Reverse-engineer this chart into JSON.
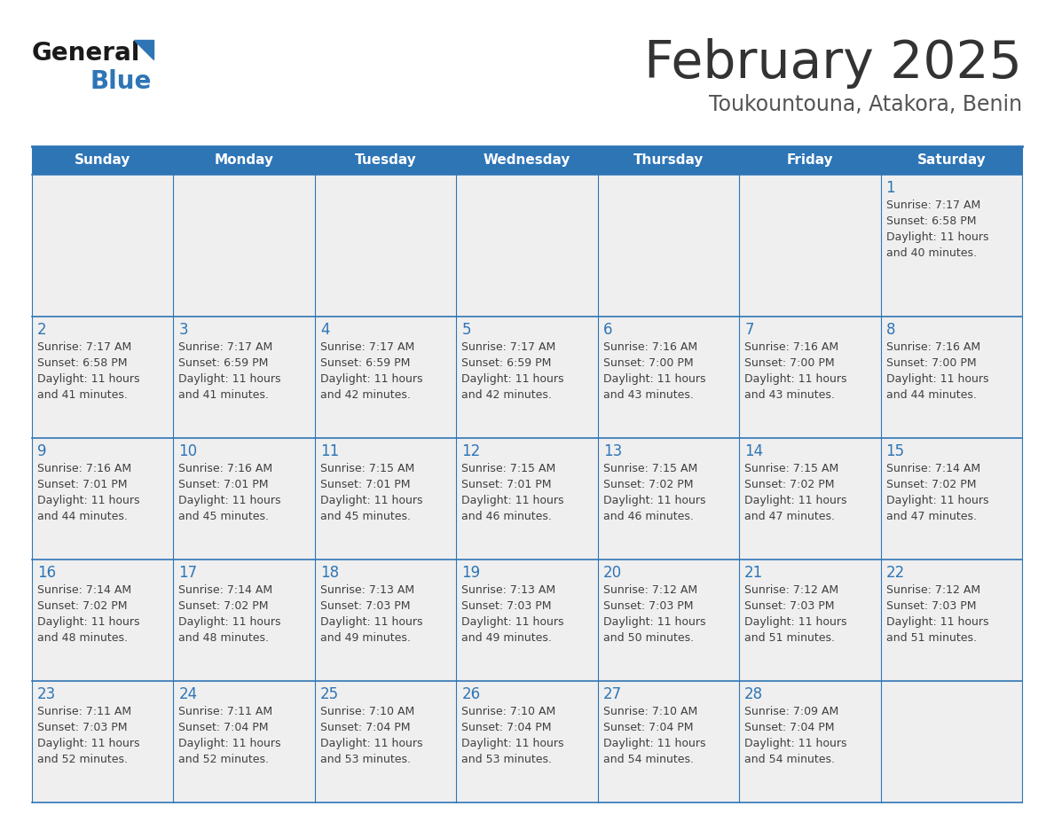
{
  "title": "February 2025",
  "subtitle": "Toukountouna, Atakora, Benin",
  "days_of_week": [
    "Sunday",
    "Monday",
    "Tuesday",
    "Wednesday",
    "Thursday",
    "Friday",
    "Saturday"
  ],
  "header_bg": "#2E75B6",
  "header_text": "#FFFFFF",
  "cell_bg": "#EFEFEF",
  "border_color": "#2E75B6",
  "title_color": "#333333",
  "subtitle_color": "#555555",
  "day_number_color": "#2E75B6",
  "text_color": "#404040",
  "logo_general_color": "#1a1a1a",
  "logo_blue_color": "#2E75B6",
  "logo_triangle_color": "#2E75B6",
  "calendar": [
    [
      null,
      null,
      null,
      null,
      null,
      null,
      {
        "day": 1,
        "sunrise": "7:17 AM",
        "sunset": "6:58 PM",
        "daylight": "11 hours and 40 minutes."
      }
    ],
    [
      {
        "day": 2,
        "sunrise": "7:17 AM",
        "sunset": "6:58 PM",
        "daylight": "11 hours and 41 minutes."
      },
      {
        "day": 3,
        "sunrise": "7:17 AM",
        "sunset": "6:59 PM",
        "daylight": "11 hours and 41 minutes."
      },
      {
        "day": 4,
        "sunrise": "7:17 AM",
        "sunset": "6:59 PM",
        "daylight": "11 hours and 42 minutes."
      },
      {
        "day": 5,
        "sunrise": "7:17 AM",
        "sunset": "6:59 PM",
        "daylight": "11 hours and 42 minutes."
      },
      {
        "day": 6,
        "sunrise": "7:16 AM",
        "sunset": "7:00 PM",
        "daylight": "11 hours and 43 minutes."
      },
      {
        "day": 7,
        "sunrise": "7:16 AM",
        "sunset": "7:00 PM",
        "daylight": "11 hours and 43 minutes."
      },
      {
        "day": 8,
        "sunrise": "7:16 AM",
        "sunset": "7:00 PM",
        "daylight": "11 hours and 44 minutes."
      }
    ],
    [
      {
        "day": 9,
        "sunrise": "7:16 AM",
        "sunset": "7:01 PM",
        "daylight": "11 hours and 44 minutes."
      },
      {
        "day": 10,
        "sunrise": "7:16 AM",
        "sunset": "7:01 PM",
        "daylight": "11 hours and 45 minutes."
      },
      {
        "day": 11,
        "sunrise": "7:15 AM",
        "sunset": "7:01 PM",
        "daylight": "11 hours and 45 minutes."
      },
      {
        "day": 12,
        "sunrise": "7:15 AM",
        "sunset": "7:01 PM",
        "daylight": "11 hours and 46 minutes."
      },
      {
        "day": 13,
        "sunrise": "7:15 AM",
        "sunset": "7:02 PM",
        "daylight": "11 hours and 46 minutes."
      },
      {
        "day": 14,
        "sunrise": "7:15 AM",
        "sunset": "7:02 PM",
        "daylight": "11 hours and 47 minutes."
      },
      {
        "day": 15,
        "sunrise": "7:14 AM",
        "sunset": "7:02 PM",
        "daylight": "11 hours and 47 minutes."
      }
    ],
    [
      {
        "day": 16,
        "sunrise": "7:14 AM",
        "sunset": "7:02 PM",
        "daylight": "11 hours and 48 minutes."
      },
      {
        "day": 17,
        "sunrise": "7:14 AM",
        "sunset": "7:02 PM",
        "daylight": "11 hours and 48 minutes."
      },
      {
        "day": 18,
        "sunrise": "7:13 AM",
        "sunset": "7:03 PM",
        "daylight": "11 hours and 49 minutes."
      },
      {
        "day": 19,
        "sunrise": "7:13 AM",
        "sunset": "7:03 PM",
        "daylight": "11 hours and 49 minutes."
      },
      {
        "day": 20,
        "sunrise": "7:12 AM",
        "sunset": "7:03 PM",
        "daylight": "11 hours and 50 minutes."
      },
      {
        "day": 21,
        "sunrise": "7:12 AM",
        "sunset": "7:03 PM",
        "daylight": "11 hours and 51 minutes."
      },
      {
        "day": 22,
        "sunrise": "7:12 AM",
        "sunset": "7:03 PM",
        "daylight": "11 hours and 51 minutes."
      }
    ],
    [
      {
        "day": 23,
        "sunrise": "7:11 AM",
        "sunset": "7:03 PM",
        "daylight": "11 hours and 52 minutes."
      },
      {
        "day": 24,
        "sunrise": "7:11 AM",
        "sunset": "7:04 PM",
        "daylight": "11 hours and 52 minutes."
      },
      {
        "day": 25,
        "sunrise": "7:10 AM",
        "sunset": "7:04 PM",
        "daylight": "11 hours and 53 minutes."
      },
      {
        "day": 26,
        "sunrise": "7:10 AM",
        "sunset": "7:04 PM",
        "daylight": "11 hours and 53 minutes."
      },
      {
        "day": 27,
        "sunrise": "7:10 AM",
        "sunset": "7:04 PM",
        "daylight": "11 hours and 54 minutes."
      },
      {
        "day": 28,
        "sunrise": "7:09 AM",
        "sunset": "7:04 PM",
        "daylight": "11 hours and 54 minutes."
      },
      null
    ]
  ]
}
